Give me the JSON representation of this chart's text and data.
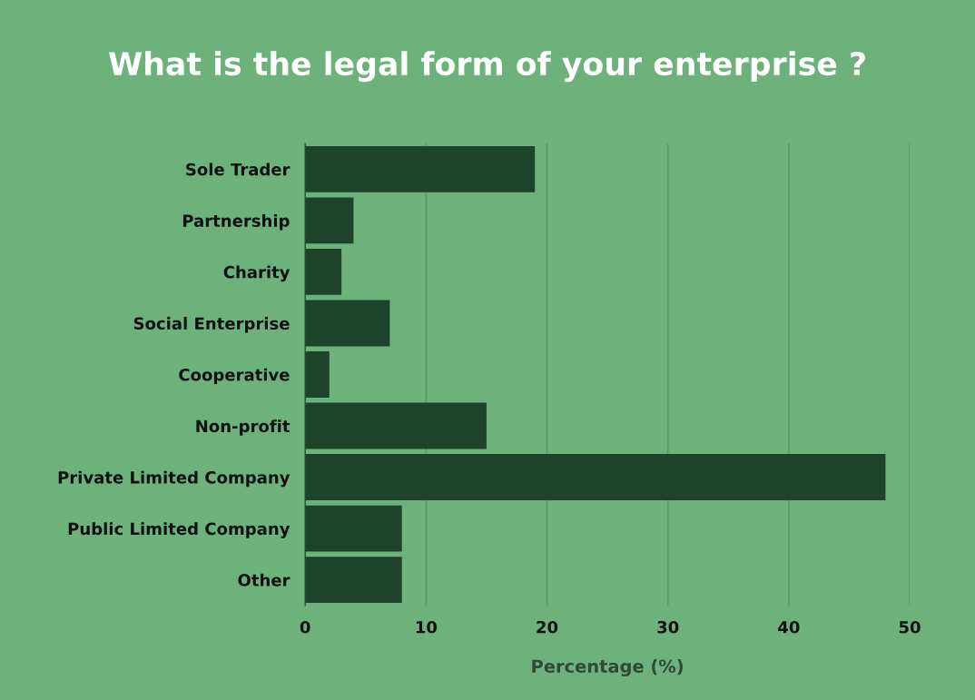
{
  "chart_data": {
    "type": "bar",
    "orientation": "horizontal",
    "title": "What is the legal form of your enterprise ?",
    "xlabel": "Percentage (%)",
    "categories": [
      "Sole Trader",
      "Partnership",
      "Charity",
      "Social Enterprise",
      "Cooperative",
      "Non-profit",
      "Private Limited Company",
      "Public Limited Company",
      "Other"
    ],
    "values": [
      19,
      4,
      3,
      7,
      2,
      15,
      48,
      8,
      8
    ],
    "color": "#1e432b",
    "xlim": [
      0,
      50
    ],
    "xticks": [
      0,
      10,
      20,
      30,
      40,
      50
    ],
    "grid": "x"
  }
}
